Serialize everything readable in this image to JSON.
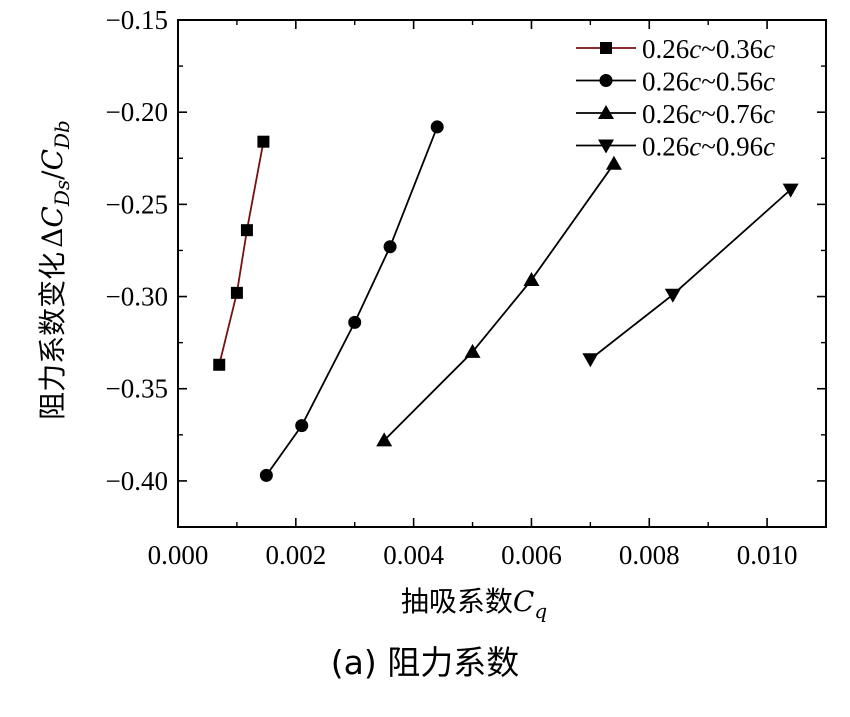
{
  "chart_data": {
    "type": "line",
    "xlabel": {
      "text": "抽吸系数",
      "symbol": "C",
      "sub": "q"
    },
    "ylabel": {
      "text": "阻力系数变化",
      "delta": "Δ",
      "num": "C",
      "num_sub": "Ds",
      "slash": "/",
      "den": "C",
      "den_sub": "Db"
    },
    "xlim": [
      0,
      0.011
    ],
    "ylim": [
      -0.425,
      -0.15
    ],
    "x_ticks": [
      0.0,
      0.002,
      0.004,
      0.006,
      0.008,
      0.01
    ],
    "x_tick_labels": [
      "0.000",
      "0.002",
      "0.004",
      "0.006",
      "0.008",
      "0.010"
    ],
    "y_ticks": [
      -0.15,
      -0.2,
      -0.25,
      -0.3,
      -0.35,
      -0.4
    ],
    "y_tick_labels": [
      "−0.15",
      "−0.20",
      "−0.25",
      "−0.30",
      "−0.35",
      "−0.40"
    ],
    "grid": false,
    "legend_position": "top-right",
    "series": [
      {
        "name": "0.26c~0.36c",
        "name_parts": {
          "a": "0.26",
          "b": "c",
          "c": "~0.36",
          "d": "c"
        },
        "marker": "square",
        "color": "#7a1010",
        "x": [
          0.0007,
          0.001,
          0.00117,
          0.00145
        ],
        "y": [
          -0.337,
          -0.298,
          -0.264,
          -0.216
        ]
      },
      {
        "name": "0.26c~0.56c",
        "name_parts": {
          "a": "0.26",
          "b": "c",
          "c": "~0.56",
          "d": "c"
        },
        "marker": "circle",
        "color": "#000000",
        "x": [
          0.0015,
          0.0021,
          0.003,
          0.0036,
          0.0044
        ],
        "y": [
          -0.397,
          -0.37,
          -0.314,
          -0.273,
          -0.208
        ]
      },
      {
        "name": "0.26c~0.76c",
        "name_parts": {
          "a": "0.26",
          "b": "c",
          "c": "~0.76",
          "d": "c"
        },
        "marker": "triangle-up",
        "color": "#000000",
        "x": [
          0.0035,
          0.005,
          0.006,
          0.0074
        ],
        "y": [
          -0.378,
          -0.33,
          -0.291,
          -0.228
        ]
      },
      {
        "name": "0.26c~0.96c",
        "name_parts": {
          "a": "0.26",
          "b": "c",
          "c": "~0.96",
          "d": "c"
        },
        "marker": "triangle-down",
        "color": "#000000",
        "x": [
          0.007,
          0.0084,
          0.0104
        ],
        "y": [
          -0.334,
          -0.299,
          -0.242
        ]
      }
    ]
  },
  "caption": "(a) 阻力系数"
}
